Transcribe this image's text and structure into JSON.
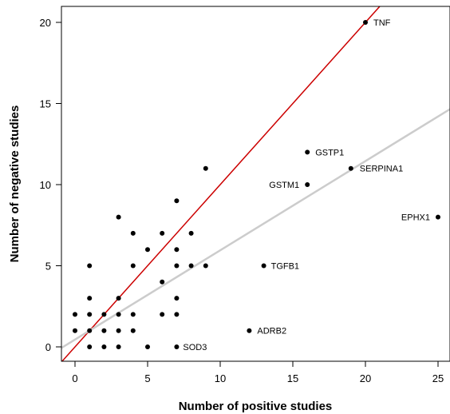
{
  "chart_data": {
    "type": "scatter",
    "title": "",
    "xlabel": "Number of positive studies",
    "ylabel": "Number of negative studies",
    "xlim": [
      -1,
      26
    ],
    "ylim": [
      -0.6,
      20.6
    ],
    "x_ticks": [
      0,
      5,
      10,
      15,
      20,
      25
    ],
    "y_ticks": [
      0,
      5,
      10,
      15,
      20
    ],
    "grid": false,
    "legend": "none",
    "points": [
      {
        "x": 0,
        "y": 2
      },
      {
        "x": 0,
        "y": 1
      },
      {
        "x": 1,
        "y": 5
      },
      {
        "x": 1,
        "y": 3
      },
      {
        "x": 1,
        "y": 2
      },
      {
        "x": 1,
        "y": 1
      },
      {
        "x": 1,
        "y": 0
      },
      {
        "x": 2,
        "y": 2
      },
      {
        "x": 2,
        "y": 1
      },
      {
        "x": 2,
        "y": 0
      },
      {
        "x": 3,
        "y": 8
      },
      {
        "x": 3,
        "y": 3
      },
      {
        "x": 3,
        "y": 2
      },
      {
        "x": 3,
        "y": 1
      },
      {
        "x": 3,
        "y": 0
      },
      {
        "x": 4,
        "y": 7
      },
      {
        "x": 4,
        "y": 5
      },
      {
        "x": 4,
        "y": 2
      },
      {
        "x": 4,
        "y": 1
      },
      {
        "x": 5,
        "y": 6
      },
      {
        "x": 5,
        "y": 0
      },
      {
        "x": 6,
        "y": 7
      },
      {
        "x": 6,
        "y": 4
      },
      {
        "x": 6,
        "y": 2
      },
      {
        "x": 7,
        "y": 9
      },
      {
        "x": 7,
        "y": 6
      },
      {
        "x": 7,
        "y": 5
      },
      {
        "x": 7,
        "y": 3
      },
      {
        "x": 7,
        "y": 2
      },
      {
        "x": 8,
        "y": 7
      },
      {
        "x": 8,
        "y": 5
      },
      {
        "x": 9,
        "y": 11
      },
      {
        "x": 9,
        "y": 5
      },
      {
        "x": 7,
        "y": 0,
        "label": "SOD3"
      },
      {
        "x": 12,
        "y": 1,
        "label": "ADRB2"
      },
      {
        "x": 13,
        "y": 5,
        "label": "TGFB1"
      },
      {
        "x": 16,
        "y": 10,
        "label": "GSTM1"
      },
      {
        "x": 16,
        "y": 12,
        "label": "GSTP1"
      },
      {
        "x": 19,
        "y": 11,
        "label": "SERPINA1"
      },
      {
        "x": 20,
        "y": 20,
        "label": "TNF"
      },
      {
        "x": 25,
        "y": 8,
        "label": "EPHX1"
      }
    ],
    "lines": [
      {
        "type": "identity",
        "color": "#cc0000",
        "intercept": 0,
        "slope": 1
      },
      {
        "type": "fit",
        "color": "#cccccc",
        "intercept": 0.45,
        "slope": 0.55
      }
    ]
  }
}
